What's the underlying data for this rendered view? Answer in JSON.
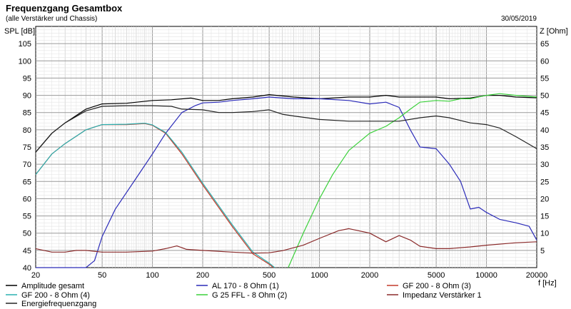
{
  "header": {
    "title": "Frequenzgang Gesamtbox",
    "subtitle": "(alle Verstärker und Chassis)",
    "date": "30/05/2019"
  },
  "chart_data": {
    "type": "line",
    "title": "Frequenzgang Gesamtbox",
    "subtitle": "(alle Verstärker und Chassis)",
    "ylabel": "SPL [dB]",
    "y2label": "Z [Ohm]",
    "xlabel": "f [Hz]",
    "xscale": "log",
    "xlim": [
      20,
      20000
    ],
    "ylim": [
      40,
      110
    ],
    "y2lim": [
      0,
      70
    ],
    "x_ticks": [
      20,
      50,
      100,
      200,
      500,
      1000,
      2000,
      5000,
      10000,
      20000
    ],
    "x_tick_labels": [
      "20",
      "50",
      "100",
      "200",
      "500",
      "1000",
      "2000",
      "5000",
      "10000",
      "20000"
    ],
    "y_ticks": [
      40,
      45,
      50,
      55,
      60,
      65,
      70,
      75,
      80,
      85,
      90,
      95,
      100,
      105
    ],
    "y2_ticks": [
      5,
      10,
      15,
      20,
      25,
      30,
      35,
      40,
      45,
      50,
      55,
      60,
      65
    ],
    "grid": true,
    "legend_position": "bottom",
    "series": [
      {
        "name": "Amplitude gesamt",
        "color": "#000000",
        "axis": "left",
        "x": [
          20,
          25,
          30,
          40,
          50,
          70,
          100,
          130,
          170,
          200,
          250,
          300,
          400,
          500,
          700,
          1000,
          1500,
          2000,
          2500,
          3000,
          4000,
          5000,
          6000,
          8000,
          10000,
          12000,
          15000,
          20000
        ],
        "y": [
          73.5,
          79,
          82,
          86,
          87.5,
          87.7,
          88.5,
          88.7,
          89.2,
          88.5,
          88.5,
          89,
          89.5,
          90.2,
          89.5,
          89,
          89.5,
          89.5,
          90,
          89.5,
          89.5,
          89.5,
          89,
          89.2,
          90,
          90,
          89.5,
          89.3
        ]
      },
      {
        "name": "AL 170 - 8 Ohm (1)",
        "color": "#2a2ab8",
        "axis": "left",
        "x": [
          20,
          30,
          40,
          45,
          50,
          60,
          80,
          100,
          120,
          150,
          180,
          200,
          250,
          300,
          400,
          500,
          700,
          1000,
          1500,
          2000,
          2500,
          3000,
          3500,
          4000,
          5000,
          6000,
          7000,
          8000,
          9000,
          10000,
          12000,
          15000,
          18000,
          20000
        ],
        "y": [
          40,
          40,
          40,
          42,
          49,
          57,
          66,
          73,
          79,
          85,
          87,
          87.8,
          88,
          88.5,
          89,
          89.5,
          89,
          89,
          88.5,
          87.5,
          88,
          86.5,
          80,
          75,
          74.5,
          70,
          65,
          57,
          57.5,
          56,
          54,
          53,
          52,
          48
        ]
      },
      {
        "name": "GF 200 - 8 Ohm (3)",
        "color": "#c23a2a",
        "axis": "left",
        "x": [
          20,
          25,
          30,
          40,
          50,
          70,
          90,
          100,
          120,
          150,
          200,
          300,
          400,
          500,
          530
        ],
        "y": [
          67,
          73,
          76,
          80,
          81.5,
          81.5,
          81.8,
          81.3,
          79,
          73,
          64,
          52,
          44,
          41,
          40
        ]
      },
      {
        "name": "GF 200 - 8 Ohm (4)",
        "color": "#2ab0b0",
        "axis": "left",
        "x": [
          20,
          25,
          30,
          40,
          50,
          70,
          90,
          100,
          120,
          150,
          200,
          300,
          400,
          500,
          540
        ],
        "y": [
          67,
          73,
          76,
          80,
          81.5,
          81.6,
          81.9,
          81.4,
          79.2,
          73.5,
          64.5,
          52.5,
          44.5,
          41.3,
          40
        ]
      },
      {
        "name": "G 25 FFL - 8 Ohm (2)",
        "color": "#3ad03a",
        "axis": "left",
        "x": [
          650,
          800,
          1000,
          1200,
          1500,
          2000,
          2500,
          3000,
          3500,
          4000,
          5000,
          6000,
          7000,
          8000,
          10000,
          12000,
          15000,
          20000
        ],
        "y": [
          40,
          50,
          60,
          67,
          74,
          79,
          81,
          83.5,
          86,
          88,
          88.5,
          88.3,
          89,
          89,
          90,
          90.5,
          90,
          89.5
        ]
      },
      {
        "name": "Impedanz Verstärker 1",
        "color": "#8a2a2a",
        "axis": "right",
        "x": [
          20,
          25,
          30,
          35,
          40,
          50,
          70,
          100,
          120,
          140,
          160,
          200,
          300,
          400,
          500,
          600,
          800,
          1000,
          1300,
          1500,
          2000,
          2500,
          3000,
          3500,
          4000,
          5000,
          6000,
          8000,
          10000,
          15000,
          20000
        ],
        "y": [
          5.5,
          4.5,
          4.5,
          5,
          5,
          4.5,
          4.5,
          4.8,
          5.5,
          6.3,
          5.3,
          5,
          4.5,
          4.2,
          4.3,
          4.9,
          6.5,
          8.5,
          10.7,
          11.3,
          10,
          7.5,
          9.3,
          8,
          6.2,
          5.5,
          5.5,
          6,
          6.5,
          7.2,
          7.5
        ]
      },
      {
        "name": "Energiefrequenzgang",
        "color": "#222222",
        "axis": "left",
        "x": [
          20,
          25,
          30,
          40,
          50,
          70,
          100,
          130,
          150,
          200,
          250,
          300,
          400,
          500,
          600,
          700,
          1000,
          1500,
          2000,
          3000,
          4000,
          5000,
          6000,
          8000,
          10000,
          12000,
          15000,
          20000
        ],
        "y": [
          73.5,
          79,
          82,
          85.5,
          86.8,
          87,
          87,
          86.8,
          86,
          85.8,
          85,
          85,
          85.3,
          85.8,
          84.5,
          84,
          83,
          82.5,
          82.5,
          82.5,
          83.5,
          84,
          83.5,
          82,
          81.5,
          80.5,
          78,
          74.5
        ]
      }
    ]
  }
}
